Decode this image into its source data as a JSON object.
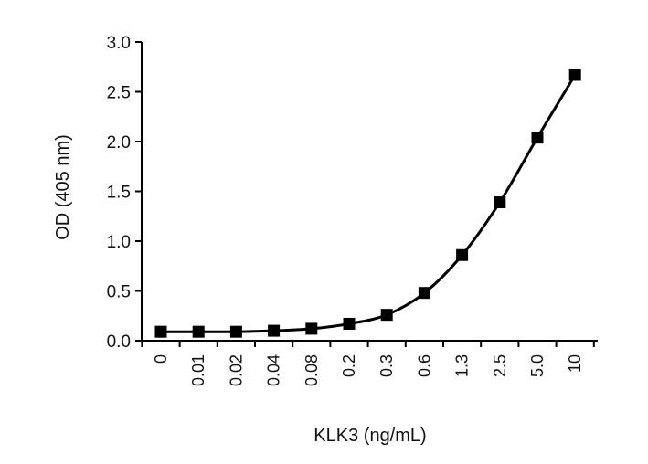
{
  "chart_data": {
    "type": "line",
    "title": "",
    "xlabel": "KLK3 (ng/mL)",
    "ylabel": "OD (405 nm)",
    "categories": [
      "0",
      "0.01",
      "0.02",
      "0.04",
      "0.08",
      "0.2",
      "0.3",
      "0.6",
      "1.3",
      "2.5",
      "5.0",
      "10"
    ],
    "series": [
      {
        "values": [
          0.09,
          0.09,
          0.09,
          0.1,
          0.12,
          0.17,
          0.26,
          0.48,
          0.86,
          1.39,
          2.04,
          2.67
        ],
        "marker": "square",
        "color": "#000000"
      }
    ],
    "ylim": [
      0,
      3.0
    ],
    "yticks": [
      "0.0",
      "0.5",
      "1.0",
      "1.5",
      "2.0",
      "2.5",
      "3.0"
    ],
    "grid": false,
    "legend": "none"
  }
}
